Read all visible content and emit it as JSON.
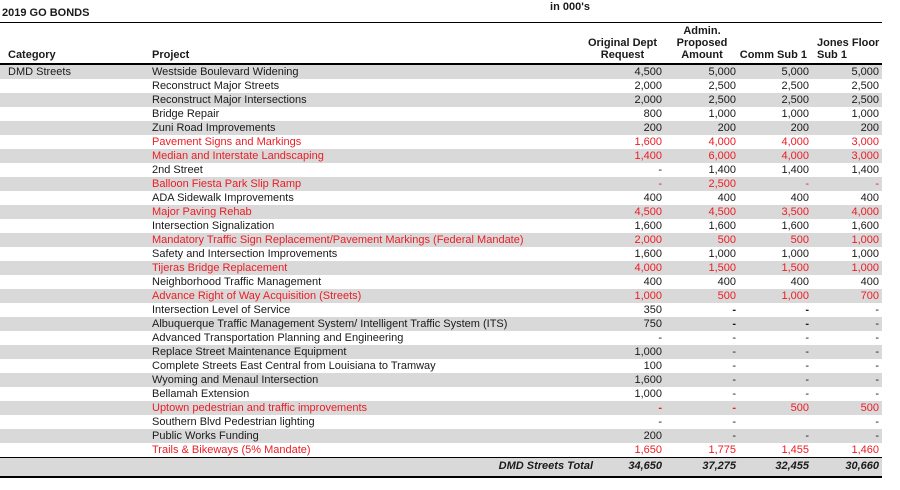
{
  "meta": {
    "units_label": "in 000's",
    "title": "2019 GO BONDS"
  },
  "colors": {
    "stripe": "#d9d9d9",
    "red_text": "#ed1c24"
  },
  "table": {
    "columns": {
      "category": "Category",
      "project": "Project",
      "col3": "Original Dept Request",
      "col4": "Admin. Proposed Amount",
      "col5": "Comm Sub 1",
      "col6": "Jones Floor Sub 1"
    },
    "rows": [
      {
        "category": "DMD Streets",
        "project": "Westside Boulevard Widening",
        "values": [
          "4,500",
          "5,000",
          "5,000",
          "5,000"
        ],
        "red": false
      },
      {
        "category": "",
        "project": "Reconstruct Major Streets",
        "values": [
          "2,000",
          "2,500",
          "2,500",
          "2,500"
        ],
        "red": false
      },
      {
        "category": "",
        "project": "Reconstruct Major Intersections",
        "values": [
          "2,000",
          "2,500",
          "2,500",
          "2,500"
        ],
        "red": false
      },
      {
        "category": "",
        "project": "Bridge Repair",
        "values": [
          "800",
          "1,000",
          "1,000",
          "1,000"
        ],
        "red": false
      },
      {
        "category": "",
        "project": "Zuni Road Improvements",
        "values": [
          "200",
          "200",
          "200",
          "200"
        ],
        "red": false
      },
      {
        "category": "",
        "project": "Pavement Signs and Markings",
        "values": [
          "1,600",
          "4,000",
          "4,000",
          "3,000"
        ],
        "red": true
      },
      {
        "category": "",
        "project": "Median and Interstate Landscaping",
        "values": [
          "1,400",
          "6,000",
          "4,000",
          "3,000"
        ],
        "red": true
      },
      {
        "category": "",
        "project": "2nd Street",
        "values": [
          "-",
          "1,400",
          "1,400",
          "1,400"
        ],
        "red": false
      },
      {
        "category": "",
        "project": "Balloon Fiesta Park Slip Ramp",
        "values": [
          "-",
          "2,500",
          "-",
          "-"
        ],
        "red": true
      },
      {
        "category": "",
        "project": "ADA Sidewalk Improvements",
        "values": [
          "400",
          "400",
          "400",
          "400"
        ],
        "red": false
      },
      {
        "category": "",
        "project": "Major Paving Rehab",
        "values": [
          "4,500",
          "4,500",
          "3,500",
          "4,000"
        ],
        "red": true
      },
      {
        "category": "",
        "project": "Intersection Signalization",
        "values": [
          "1,600",
          "1,600",
          "1,600",
          "1,600"
        ],
        "red": false
      },
      {
        "category": "",
        "project": "Mandatory Traffic Sign Replacement/Pavement Markings (Federal Mandate)",
        "values": [
          "2,000",
          "500",
          "500",
          "1,000"
        ],
        "red": true
      },
      {
        "category": "",
        "project": "Safety and Intersection Improvements",
        "values": [
          "1,600",
          "1,000",
          "1,000",
          "1,000"
        ],
        "red": false
      },
      {
        "category": "",
        "project": "Tijeras Bridge Replacement",
        "values": [
          "4,000",
          "1,500",
          "1,500",
          "1,000"
        ],
        "red": true
      },
      {
        "category": "",
        "project": "Neighborhood Traffic Management",
        "values": [
          "400",
          "400",
          "400",
          "400"
        ],
        "red": false
      },
      {
        "category": "",
        "project": "Advance Right of Way Acquisition (Streets)",
        "values": [
          "1,000",
          "500",
          "1,000",
          "700"
        ],
        "red": true
      },
      {
        "category": "",
        "project": "Intersection Level of Service",
        "values": [
          "350",
          "-",
          "-",
          "-"
        ],
        "red": false,
        "bold": [
          1,
          2
        ]
      },
      {
        "category": "",
        "project": "Albuquerque Traffic Management System/ Intelligent Traffic System (ITS)",
        "values": [
          "750",
          "-",
          "-",
          "-"
        ],
        "red": false,
        "bold": [
          1,
          2
        ]
      },
      {
        "category": "",
        "project": "Advanced Transportation Planning and Engineering",
        "values": [
          "-",
          "-",
          "-",
          "-"
        ],
        "red": false
      },
      {
        "category": "",
        "project": "Replace Street Maintenance Equipment",
        "values": [
          "1,000",
          "-",
          "-",
          "-"
        ],
        "red": false
      },
      {
        "category": "",
        "project": "Complete Streets East Central from Louisiana to Tramway",
        "values": [
          "100",
          "-",
          "-",
          "-"
        ],
        "red": false
      },
      {
        "category": "",
        "project": "Wyoming and Menaul Intersection",
        "values": [
          "1,600",
          "-",
          "-",
          "-"
        ],
        "red": false
      },
      {
        "category": "",
        "project": "Bellamah Extension",
        "values": [
          "1,000",
          "-",
          "-",
          "-"
        ],
        "red": false
      },
      {
        "category": "",
        "project": "Uptown pedestrian and traffic improvements",
        "values": [
          "-",
          "-",
          "500",
          "500"
        ],
        "red": true,
        "bold": [
          0,
          1
        ]
      },
      {
        "category": "",
        "project": "Southern Blvd Pedestrian lighting",
        "values": [
          "-",
          "-",
          "",
          "-"
        ],
        "red": false
      },
      {
        "category": "",
        "project": "Public Works Funding",
        "values": [
          "200",
          "-",
          "-",
          "-"
        ],
        "red": false
      },
      {
        "category": "",
        "project": "Trails & Bikeways (5% Mandate)",
        "values": [
          "1,650",
          "1,775",
          "1,455",
          "1,460"
        ],
        "red": true
      }
    ],
    "total": {
      "label": "DMD Streets Total",
      "values": [
        "34,650",
        "37,275",
        "32,455",
        "30,660"
      ]
    }
  }
}
